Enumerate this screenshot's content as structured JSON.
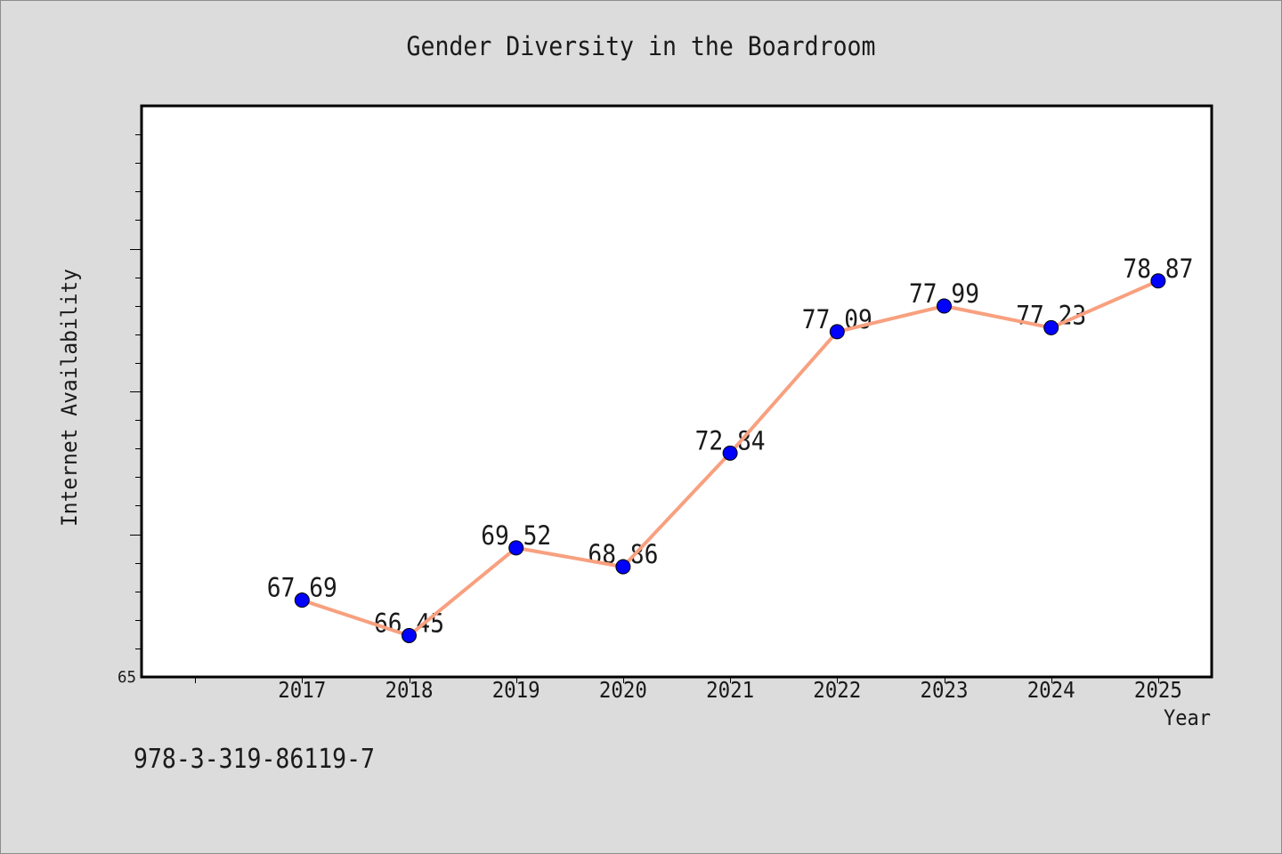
{
  "colors": {
    "page_background": "#dcdcdc",
    "page_border": "#8c8c8c",
    "plot_background": "#ffffff",
    "axis": "#000000",
    "text": "#1a1a1a",
    "line": "#f8a07f",
    "marker": "#0000ff",
    "marker_edge": "#000000",
    "data_label": "#0000ff"
  },
  "footer": {
    "text": "978-3-319-86119-7"
  },
  "chart_data": {
    "type": "line",
    "title": "Gender Diversity in the Boardroom",
    "xlabel": "Year",
    "ylabel": "Internet Availability",
    "x": [
      2017,
      2018,
      2019,
      2020,
      2021,
      2022,
      2023,
      2024,
      2025
    ],
    "series": [
      {
        "values": [
          67.69,
          66.45,
          69.52,
          68.86,
          72.84,
          77.09,
          77.99,
          77.23,
          78.87
        ]
      }
    ],
    "xlim": [
      2015.5,
      2025.5
    ],
    "ylim": [
      65,
      85
    ],
    "y_tick_labels": [
      {
        "value": 65,
        "label": "65"
      }
    ],
    "y_major_step": 5,
    "y_minor_step": 1,
    "grid": false,
    "legend": "none"
  }
}
